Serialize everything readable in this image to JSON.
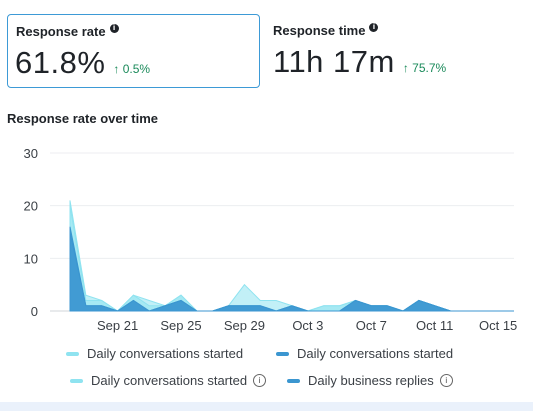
{
  "cards": {
    "response_rate": {
      "title": "Response rate",
      "value": "61.8%",
      "delta": "↑ 0.5%"
    },
    "response_time": {
      "title": "Response time",
      "value": "11h 17m",
      "delta": "↑ 75.7%"
    }
  },
  "chart_title": "Response rate over time",
  "chart_data": {
    "type": "area",
    "x": [
      "Sep 18",
      "Sep 19",
      "Sep 20",
      "Sep 21",
      "Sep 22",
      "Sep 23",
      "Sep 24",
      "Sep 25",
      "Sep 26",
      "Sep 27",
      "Sep 28",
      "Sep 29",
      "Sep 30",
      "Oct 1",
      "Oct 2",
      "Oct 3",
      "Oct 4",
      "Oct 5",
      "Oct 6",
      "Oct 7",
      "Oct 8",
      "Oct 9",
      "Oct 10",
      "Oct 11",
      "Oct 12",
      "Oct 13",
      "Oct 14",
      "Oct 15",
      "Oct 16"
    ],
    "x_tick_labels": [
      "Sep 21",
      "Sep 25",
      "Sep 29",
      "Oct 3",
      "Oct 7",
      "Oct 11",
      "Oct 15"
    ],
    "y_ticks": [
      0,
      10,
      20,
      30
    ],
    "ylim": [
      0,
      30
    ],
    "series": [
      {
        "name": "Daily conversations started",
        "color": "#8fe3f0",
        "values": [
          21,
          3,
          2,
          0,
          3,
          2,
          1,
          3,
          0,
          0,
          1,
          5,
          2,
          2,
          1,
          0,
          1,
          1,
          2,
          1,
          1,
          0,
          2,
          1,
          0,
          0,
          0,
          0,
          0
        ]
      },
      {
        "name": "Daily conversations started",
        "color": "#3b96d0",
        "values": [
          16,
          1,
          1,
          0,
          2,
          0,
          1,
          2,
          0,
          0,
          1,
          1,
          1,
          0,
          1,
          0,
          0,
          0,
          2,
          1,
          1,
          0,
          2,
          1,
          0,
          0,
          0,
          0,
          0
        ]
      },
      {
        "name": "Daily conversations started",
        "color": "#8fe3f0",
        "values": [
          20,
          2,
          2,
          0,
          3,
          1,
          1,
          3,
          0,
          0,
          1,
          1,
          1,
          0,
          1,
          0,
          1,
          1,
          2,
          1,
          1,
          0,
          2,
          1,
          0,
          0,
          0,
          0,
          0
        ]
      },
      {
        "name": "Daily business replies",
        "color": "#3b96d0",
        "values": [
          15,
          1,
          1,
          0,
          2,
          0,
          1,
          2,
          0,
          0,
          1,
          1,
          1,
          0,
          1,
          0,
          0,
          0,
          2,
          1,
          1,
          0,
          2,
          1,
          0,
          0,
          0,
          0,
          0
        ]
      }
    ]
  },
  "legend": [
    {
      "label": "Daily conversations started",
      "color": "#8fe3f0",
      "info": false
    },
    {
      "label": "Daily conversations started",
      "color": "#3b96d0",
      "info": false
    },
    {
      "label": "Daily conversations started",
      "color": "#8fe3f0",
      "info": true
    },
    {
      "label": "Daily business replies",
      "color": "#3b96d0",
      "info": true
    }
  ]
}
